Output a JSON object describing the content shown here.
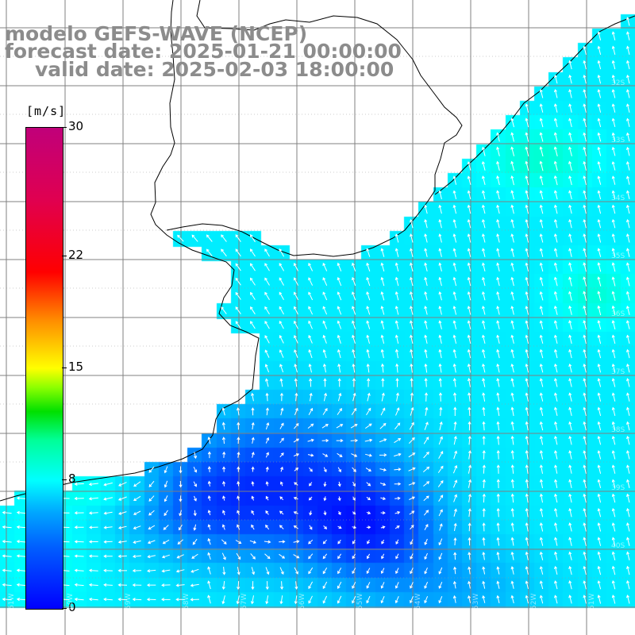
{
  "title": {
    "line1": "modelo GEFS-WAVE (NCEP)",
    "line2": "forecast date: 2025-01-21 00:00:00",
    "line3": "valid date: 2025-02-03 18:00:00"
  },
  "colorbar": {
    "unit": "[m/s]",
    "ticks": [
      "30",
      "22",
      "15",
      "8",
      "0"
    ],
    "tick_values": [
      30,
      22,
      15,
      8,
      0
    ],
    "range": [
      0,
      30
    ],
    "colors": [
      "#0000ff",
      "#0060ff",
      "#00a6ff",
      "#00ffff",
      "#00ff99",
      "#00e000",
      "#8cff00",
      "#ffff00",
      "#ff8c00",
      "#ff0000",
      "#e00050",
      "#c0007a"
    ]
  },
  "map": {
    "lat_labels": [
      "32S",
      "33S",
      "34S",
      "35S",
      "36S",
      "37S",
      "38S",
      "39S",
      "40S"
    ],
    "lon_labels": [
      "61W",
      "60W",
      "59W",
      "58W",
      "57W",
      "56W",
      "55W",
      "54W",
      "53W",
      "52W",
      "51W"
    ],
    "land_color": "#ffffff",
    "grid_color": "#808080",
    "coast_color": "#000000",
    "arrow_color": "#ffffff"
  }
}
